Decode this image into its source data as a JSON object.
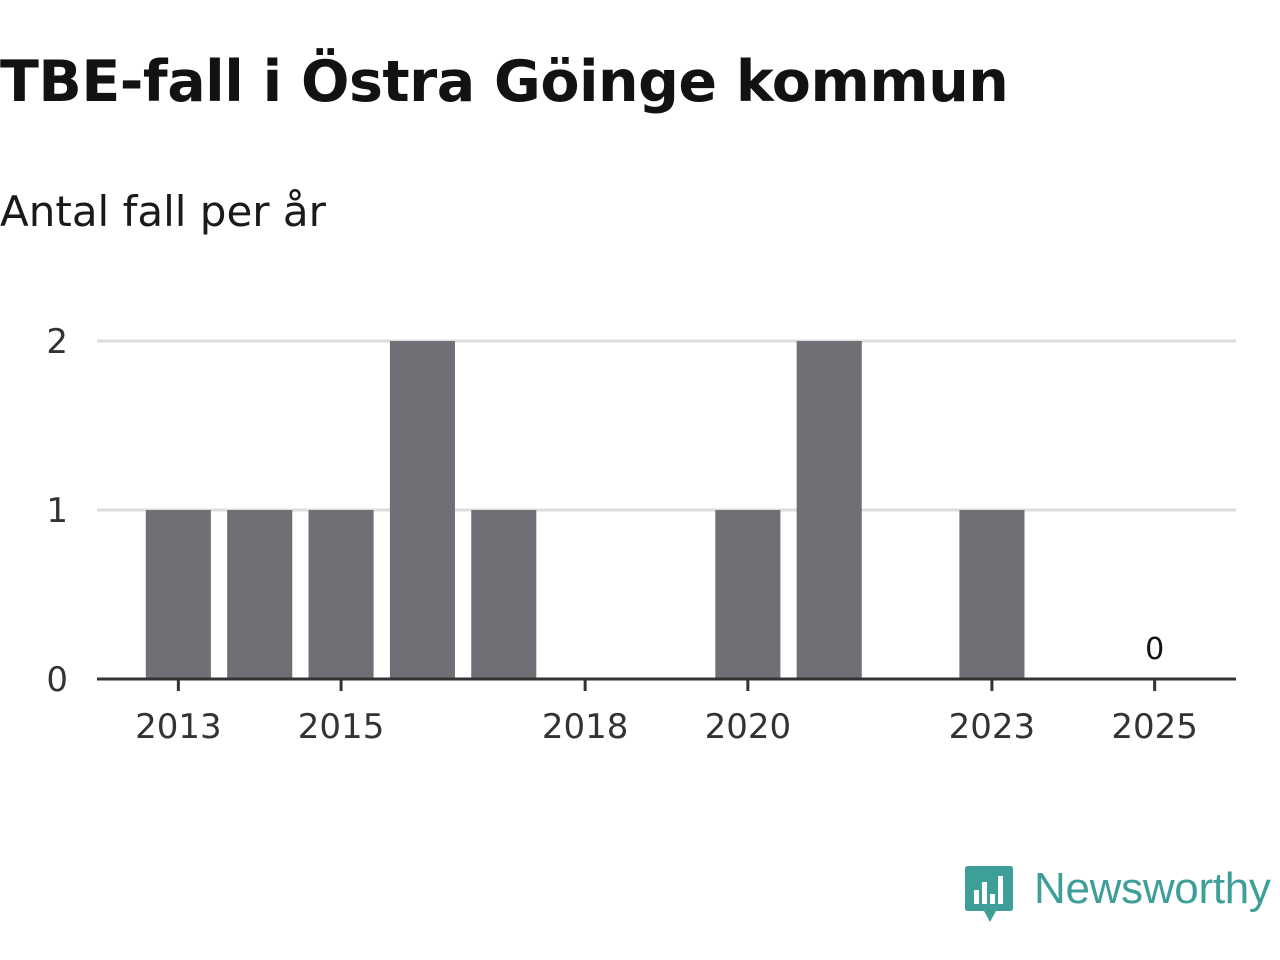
{
  "title": "TBE-fall i Östra Göinge kommun",
  "subtitle": "Antal fall per år",
  "colors": {
    "bar": "#706f75",
    "gridline": "#dddddd",
    "axis": "#333333",
    "brand": "#3e9e98"
  },
  "chart_data": {
    "type": "bar",
    "title": "TBE-fall i Östra Göinge kommun",
    "subtitle": "Antal fall per år",
    "xlabel": "",
    "ylabel": "",
    "x": [
      2013,
      2014,
      2015,
      2016,
      2017,
      2018,
      2019,
      2020,
      2021,
      2022,
      2023,
      2024,
      2025
    ],
    "values": [
      1,
      1,
      1,
      2,
      1,
      0,
      0,
      1,
      2,
      0,
      1,
      0,
      0
    ],
    "x_ticks": [
      "2013",
      "2015",
      "2018",
      "2020",
      "2023",
      "2025"
    ],
    "y_ticks": [
      "0",
      "1",
      "2"
    ],
    "ylim": [
      0,
      2
    ],
    "xlim": [
      2012,
      2026
    ],
    "gridlines": true,
    "legend": "none",
    "annotations": [
      {
        "x": 2025,
        "text": "0"
      }
    ]
  },
  "brand": {
    "name": "Newsworthy",
    "logo_icon": "newsworthy-logo-icon"
  }
}
